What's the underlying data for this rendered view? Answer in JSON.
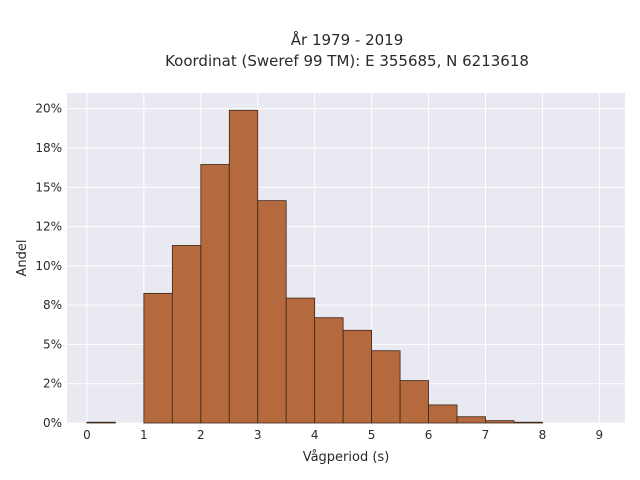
{
  "chart_data": {
    "type": "bar",
    "title": "År 1979 - 2019",
    "subtitle": "Koordinat (Sweref 99 TM): E 355685, N 6213618",
    "xlabel": "Vågperiod (s)",
    "ylabel": "Andel",
    "bin_width": 0.5,
    "bins": [
      {
        "start": 0.0,
        "value": 0.05
      },
      {
        "start": 0.5,
        "value": 0.0
      },
      {
        "start": 1.0,
        "value": 8.25
      },
      {
        "start": 1.5,
        "value": 11.3
      },
      {
        "start": 2.0,
        "value": 16.45
      },
      {
        "start": 2.5,
        "value": 19.9
      },
      {
        "start": 3.0,
        "value": 14.15
      },
      {
        "start": 3.5,
        "value": 7.95
      },
      {
        "start": 4.0,
        "value": 6.7
      },
      {
        "start": 4.5,
        "value": 5.9
      },
      {
        "start": 5.0,
        "value": 4.6
      },
      {
        "start": 5.5,
        "value": 2.7
      },
      {
        "start": 6.0,
        "value": 1.15
      },
      {
        "start": 6.5,
        "value": 0.4
      },
      {
        "start": 7.0,
        "value": 0.15
      },
      {
        "start": 7.5,
        "value": 0.05
      },
      {
        "start": 8.0,
        "value": 0.0
      },
      {
        "start": 8.5,
        "value": 0.0
      }
    ],
    "xlim": [
      -0.35,
      9.45
    ],
    "ylim": [
      0,
      21
    ],
    "xticks": [
      {
        "value": 0,
        "label": "0"
      },
      {
        "value": 1,
        "label": "1"
      },
      {
        "value": 2,
        "label": "2"
      },
      {
        "value": 3,
        "label": "3"
      },
      {
        "value": 4,
        "label": "4"
      },
      {
        "value": 5,
        "label": "5"
      },
      {
        "value": 6,
        "label": "6"
      },
      {
        "value": 7,
        "label": "7"
      },
      {
        "value": 8,
        "label": "8"
      },
      {
        "value": 9,
        "label": "9"
      }
    ],
    "yticks": [
      {
        "value": 0,
        "label": "0%"
      },
      {
        "value": 2.5,
        "label": "2%"
      },
      {
        "value": 5,
        "label": "5%"
      },
      {
        "value": 7.5,
        "label": "8%"
      },
      {
        "value": 10,
        "label": "10%"
      },
      {
        "value": 12.5,
        "label": "12%"
      },
      {
        "value": 15,
        "label": "15%"
      },
      {
        "value": 17.5,
        "label": "18%"
      },
      {
        "value": 20,
        "label": "20%"
      }
    ],
    "grid": true,
    "colors": {
      "bar_fill": "#b5693f",
      "bar_edge": "#3d2617",
      "plot_background": "#e9e9f1",
      "grid": "#ffffff"
    }
  }
}
